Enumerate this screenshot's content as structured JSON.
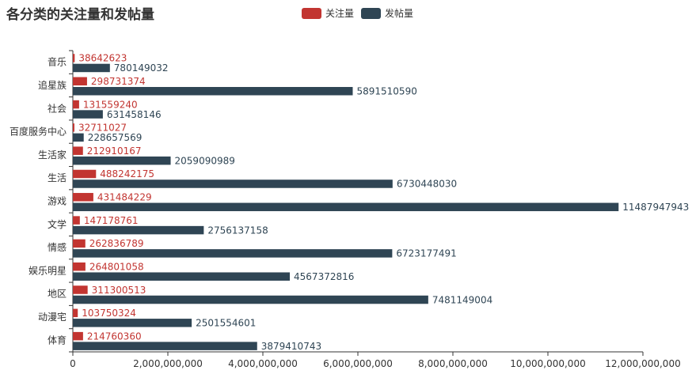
{
  "chart_data": {
    "type": "bar",
    "orientation": "horizontal",
    "title": "各分类的关注量和发帖量",
    "categories": [
      "音乐",
      "追星族",
      "社会",
      "百度服务中心",
      "生活家",
      "生活",
      "游戏",
      "文学",
      "情感",
      "娱乐明星",
      "地区",
      "动漫宅",
      "体育"
    ],
    "series": [
      {
        "name": "关注量",
        "color": "#c23531",
        "values": [
          38642623,
          298731374,
          131559240,
          32711027,
          212910167,
          488242175,
          431484229,
          147178761,
          262836789,
          264801058,
          311300513,
          103750324,
          214760360
        ]
      },
      {
        "name": "发帖量",
        "color": "#2f4554",
        "values": [
          780149032,
          5891510590,
          631458146,
          228657569,
          2059090989,
          6730448030,
          11487947943,
          2756137158,
          6723177491,
          4567372816,
          7481149004,
          2501554601,
          3879410743
        ]
      }
    ],
    "x_ticks": [
      "0",
      "2,000,000,000",
      "4,000,000,000",
      "6,000,000,000",
      "8,000,000,000",
      "10,000,000,000",
      "12,000,000,000"
    ],
    "xlim": [
      0,
      12000000000
    ],
    "legend_position": "top-center",
    "grid": false,
    "axis_color": "#333333"
  }
}
